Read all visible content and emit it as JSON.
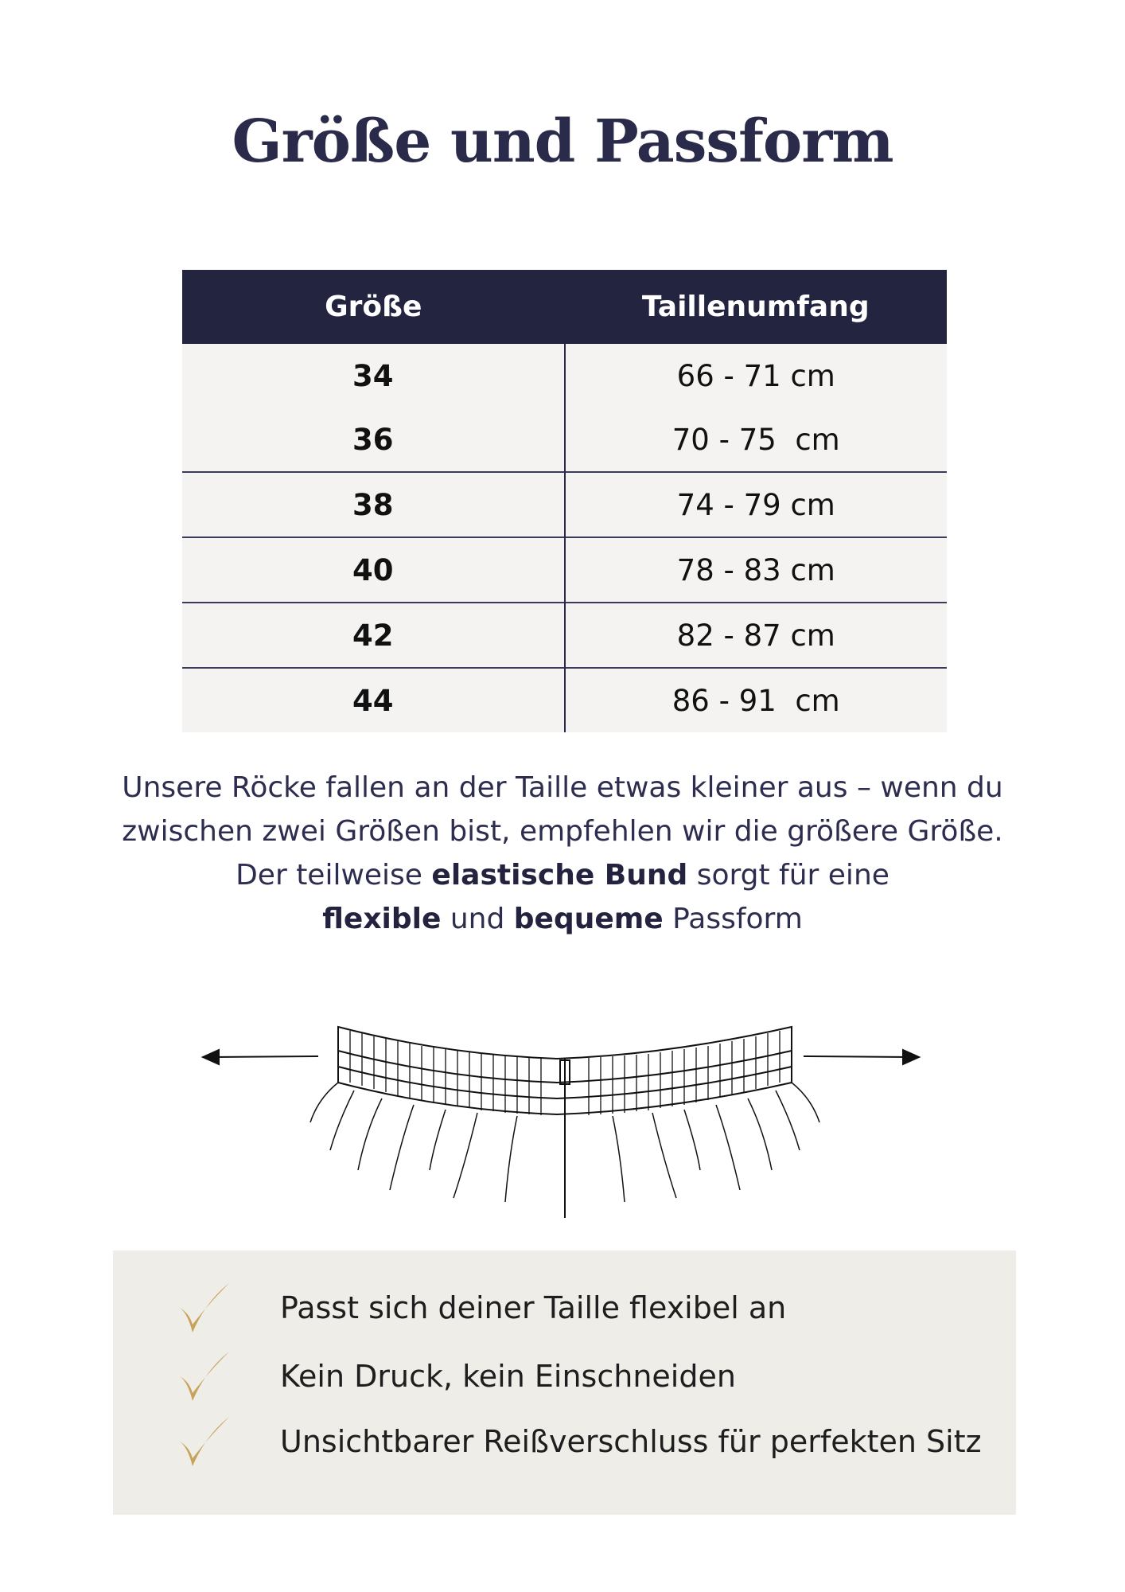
{
  "title": "Größe und Passform",
  "table": {
    "headers": [
      "Größe",
      "Taillenumfang"
    ],
    "rows": [
      {
        "size": "34",
        "waist": "66 - 71 cm"
      },
      {
        "size": "36",
        "waist": "70 - 75  cm"
      },
      {
        "size": "38",
        "waist": "74 - 79 cm"
      },
      {
        "size": "40",
        "waist": "78 - 83 cm"
      },
      {
        "size": "42",
        "waist": "82 - 87 cm"
      },
      {
        "size": "44",
        "waist": "86 - 91  cm"
      }
    ]
  },
  "description": {
    "line1": "Unsere Röcke fallen an der Taille etwas kleiner aus – wenn du",
    "line2": "zwischen zwei Größen bist, empfehlen wir die größere Größe.",
    "line3_pre": "Der teilweise ",
    "line3_bold": "elastische Bund",
    "line3_post": " sorgt für eine",
    "line4_bold1": "flexible",
    "line4_mid": " und ",
    "line4_bold2": "bequeme",
    "line4_post": " Passform"
  },
  "benefits": [
    {
      "icon": "checkmark-icon",
      "text": "Passt sich deiner Taille flexibel an"
    },
    {
      "icon": "checkmark-icon",
      "text": "Kein Druck, kein Einschneiden"
    },
    {
      "icon": "checkmark-icon",
      "text": "Unsichtbarer Reißverschluss für perfekten Sitz"
    }
  ],
  "colors": {
    "header_bg": "#232440",
    "row_bg": "#f4f3f1",
    "text": "#2d2d4f",
    "accent_check": "#c9a259",
    "benefit_bg": "#eeede8"
  }
}
